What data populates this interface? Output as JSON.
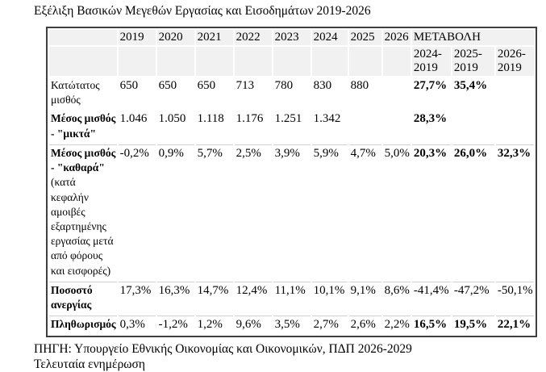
{
  "title": "Εξέλιξη Βασικών Μεγεθών Εργασίας και Εισοδημάτων 2019-2026",
  "colors": {
    "header_bg": "#f1f1f1",
    "table_border": "#3f3f3f",
    "row_separator": "#d0d0d0",
    "text": "#000000"
  },
  "table": {
    "year_headers": [
      "2019",
      "2020",
      "2021",
      "2022",
      "2023",
      "2024",
      "2025",
      "2026"
    ],
    "change_header": "ΜΕΤΑΒΟΛΗ",
    "change_subheaders": [
      "2024-\n2019",
      "2025-\n2019",
      "2026-\n2019"
    ],
    "rows": [
      {
        "label": "Κατώτατος\nμισθός",
        "label_bold": false,
        "label_suffix": "",
        "values": [
          "650",
          "650",
          "650",
          "713",
          "780",
          "830",
          "880",
          ""
        ],
        "changes": [
          "27,7%",
          "35,4%",
          ""
        ],
        "changes_bold": [
          true,
          true,
          false
        ],
        "separator_above": false
      },
      {
        "label": "Μέσος μισθός\n- \"μικτά\"",
        "label_bold": true,
        "label_suffix": "",
        "values": [
          "1.046",
          "1.050",
          "1.118",
          "1.176",
          "1.251",
          "1.342",
          "",
          ""
        ],
        "changes": [
          "28,3%",
          "",
          ""
        ],
        "changes_bold": [
          true,
          false,
          false
        ],
        "separator_above": false
      },
      {
        "label": "Μέσος μισθός\n- \"καθαρά\"",
        "label_bold": true,
        "label_suffix": "(κατά\nκεφαλήν\nαμοιβές\nεξαρτημένης\nεργασίας μετά\nαπό φόρους\nκαι εισφορές)",
        "values": [
          "-0,2%",
          "0,9%",
          "5,7%",
          "2,5%",
          "3,9%",
          "5,9%",
          "4,7%",
          "5,0%"
        ],
        "changes": [
          "20,3%",
          "26,0%",
          "32,3%"
        ],
        "changes_bold": [
          true,
          true,
          true
        ],
        "separator_above": true
      },
      {
        "label": "Ποσοστό\nανεργίας",
        "label_bold": true,
        "label_suffix": "",
        "values": [
          "17,3%",
          "16,3%",
          "14,7%",
          "12,4%",
          "11,1%",
          "10,1%",
          "9,1%",
          "8,6%"
        ],
        "changes": [
          "-41,4%",
          "-47,2%",
          "-50,1%"
        ],
        "changes_bold": [
          false,
          false,
          false
        ],
        "separator_above": true
      },
      {
        "label": "Πληθωρισμός",
        "label_bold": true,
        "label_suffix": "",
        "values": [
          "0,3%",
          "-1,2%",
          "1,2%",
          "9,6%",
          "3,5%",
          "2,7%",
          "2,6%",
          "2,2%"
        ],
        "changes": [
          "16,5%",
          "19,5%",
          "22,1%"
        ],
        "changes_bold": [
          true,
          true,
          true
        ],
        "separator_above": true
      }
    ]
  },
  "footer": {
    "source_line": "ΠΗΓΗ: Υπουργείο Εθνικής Οικονομίας και Οικονομικών, ΠΔΠ 2026-2029",
    "partial_line": "Τελευταία ενημέρωση"
  }
}
